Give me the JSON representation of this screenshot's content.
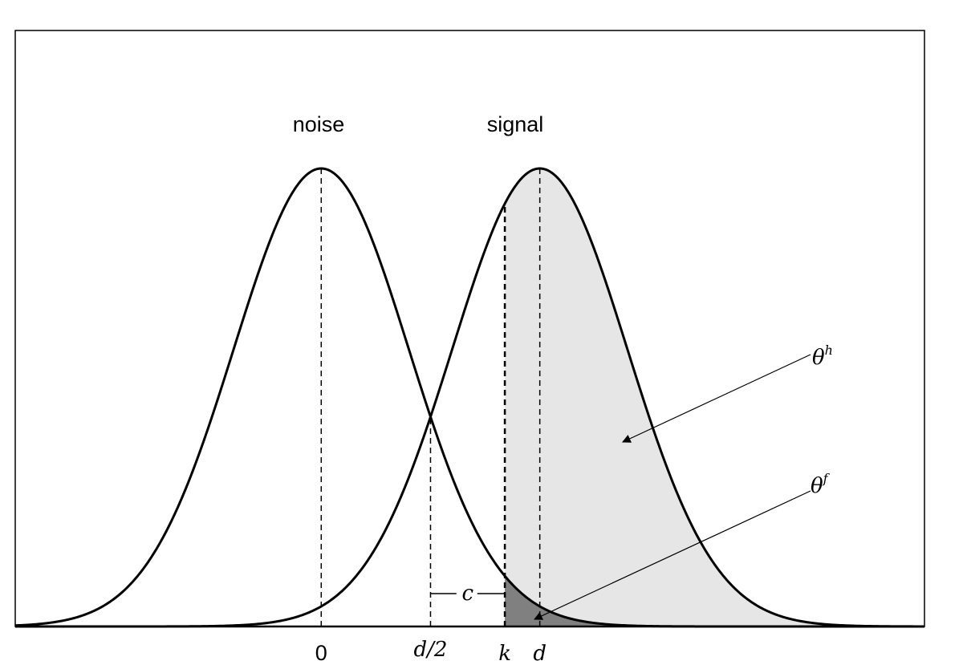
{
  "curves": {
    "noise_label": "noise",
    "signal_label": "signal"
  },
  "distributions": {
    "noise_mean": 0,
    "signal_mean": "d",
    "d_value": 2.5,
    "sd": 1,
    "k_value": 2.1,
    "x_range": [
      -3.5,
      6.9
    ]
  },
  "axis_labels": {
    "zero": "0",
    "half_d": "d/2",
    "k": "k",
    "d": "d"
  },
  "annotations": {
    "c_label": "c",
    "theta_h": {
      "base": "θ",
      "sup": "h"
    },
    "theta_f": {
      "base": "θ",
      "sup": "f"
    }
  },
  "colors": {
    "hit_area": "#e6e6e6",
    "false_alarm_area": "#808080",
    "stroke": "#000000"
  }
}
